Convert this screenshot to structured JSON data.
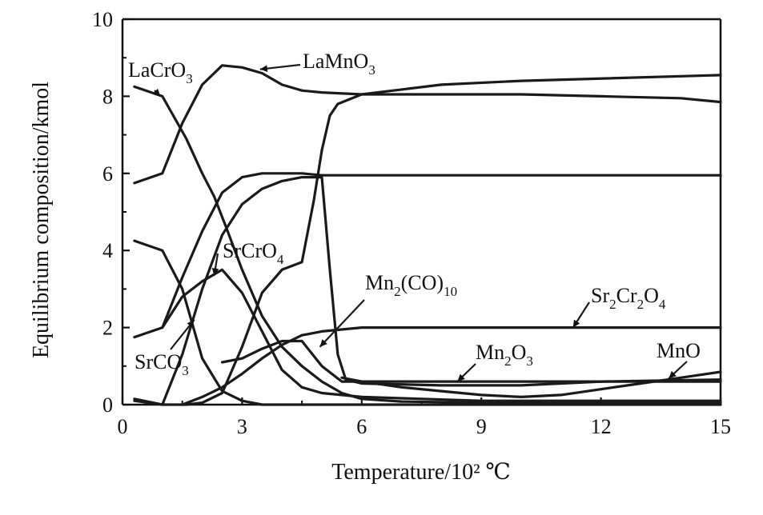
{
  "chart_data": {
    "type": "line",
    "title": "",
    "xlabel": "Temperature/10² ℃",
    "ylabel": "Equilibrium composition/kmol",
    "xlim": [
      0,
      15
    ],
    "ylim": [
      0,
      10
    ],
    "xticks": [
      "0",
      "3",
      "6",
      "9",
      "12",
      "15"
    ],
    "yticks": [
      "0",
      "2",
      "4",
      "6",
      "8",
      "10"
    ],
    "grid": false,
    "legend": "inline labels",
    "series": [
      {
        "id": "lacro3",
        "label": "LaCrO₃",
        "x": [
          0.3,
          1.0,
          1.6,
          2.0,
          2.3,
          2.6,
          3.0,
          3.5,
          4.0,
          4.5,
          5.0,
          5.5,
          6.0,
          7.0,
          9.0,
          12.0,
          15.0
        ],
        "y": [
          8.25,
          8.0,
          6.9,
          6.0,
          5.4,
          4.6,
          3.5,
          2.3,
          1.5,
          1.0,
          0.6,
          0.3,
          0.15,
          0.08,
          0.05,
          0.05,
          0.05
        ]
      },
      {
        "id": "lamno3",
        "label": "LaMnO₃",
        "x": [
          0.3,
          1.0,
          1.5,
          2.0,
          2.5,
          3.0,
          3.5,
          4.0,
          4.5,
          5.0,
          6.0,
          8.0,
          10.0,
          12.0,
          14.0,
          15.0
        ],
        "y": [
          5.75,
          6.0,
          7.3,
          8.3,
          8.8,
          8.75,
          8.6,
          8.3,
          8.15,
          8.1,
          8.05,
          8.05,
          8.05,
          8.0,
          7.95,
          7.85
        ]
      },
      {
        "id": "srcro4",
        "label": "SrCrO₄",
        "x": [
          0.3,
          1.0,
          1.5,
          2.0,
          2.5,
          3.0,
          3.5,
          4.0,
          4.5,
          5.0,
          5.5,
          6.0,
          9.0,
          12.0,
          15.0
        ],
        "y": [
          1.75,
          2.0,
          2.8,
          3.2,
          3.5,
          2.9,
          1.9,
          0.9,
          0.45,
          0.3,
          0.25,
          0.2,
          0.1,
          0.1,
          0.1
        ]
      },
      {
        "id": "srco3",
        "label": "SrCO₃",
        "x": [
          0.3,
          1.0,
          1.5,
          2.0,
          2.5,
          3.0,
          3.5,
          6.0,
          10.0,
          15.0
        ],
        "y": [
          4.25,
          4.0,
          3.0,
          1.2,
          0.35,
          0.1,
          0.0,
          0.0,
          0.0,
          0.0
        ]
      },
      {
        "id": "upper-strand",
        "label": "",
        "x": [
          1.0,
          1.5,
          2.0,
          2.5,
          3.0,
          3.5,
          4.0,
          4.5,
          5.0,
          5.5,
          6.0,
          9.0,
          12.0,
          15.0
        ],
        "y": [
          2.0,
          3.3,
          4.5,
          5.5,
          5.9,
          6.0,
          6.0,
          6.0,
          5.95,
          5.95,
          5.95,
          5.95,
          5.95,
          5.95
        ]
      },
      {
        "id": "mid-strand",
        "label": "",
        "x": [
          0.3,
          1.0,
          1.5,
          2.0,
          2.5,
          3.0,
          3.5,
          4.0,
          4.5,
          5.0,
          5.2,
          5.4,
          5.6,
          6.0,
          8.0,
          10.0,
          12.0,
          15.0
        ],
        "y": [
          0.15,
          0.0,
          1.3,
          3.0,
          4.4,
          5.2,
          5.6,
          5.8,
          5.9,
          5.9,
          3.5,
          1.3,
          0.65,
          0.55,
          0.5,
          0.5,
          0.6,
          0.65
        ]
      },
      {
        "id": "mn2co10",
        "label": "Mn₂(CO)₁₀",
        "x": [
          0.3,
          1.0,
          1.6,
          2.0,
          2.5,
          3.0,
          3.5,
          4.0,
          4.5,
          4.8,
          5.0,
          5.2,
          5.4,
          6.0,
          8.0,
          10.0,
          15.0
        ],
        "y": [
          0.1,
          0.0,
          0.0,
          0.05,
          0.3,
          1.5,
          2.9,
          3.5,
          3.7,
          5.3,
          6.6,
          7.5,
          7.8,
          8.05,
          8.3,
          8.4,
          8.55
        ]
      },
      {
        "id": "sr2cr2o4",
        "label": "Sr₂Cr₂O₄",
        "x": [
          1.5,
          2.0,
          2.5,
          3.0,
          3.5,
          4.0,
          4.5,
          5.0,
          5.5,
          6.0,
          9.0,
          12.0,
          15.0
        ],
        "y": [
          0.0,
          0.2,
          0.45,
          0.8,
          1.2,
          1.55,
          1.8,
          1.9,
          1.95,
          2.0,
          2.0,
          2.0,
          2.0
        ]
      },
      {
        "id": "mn2o3",
        "label": "Mn₂O₃",
        "x": [
          2.5,
          3.0,
          3.5,
          4.0,
          4.5,
          5.0,
          5.5,
          6.0,
          9.0,
          12.0,
          15.0
        ],
        "y": [
          1.1,
          1.2,
          1.45,
          1.65,
          1.65,
          1.0,
          0.6,
          0.6,
          0.6,
          0.6,
          0.6
        ]
      },
      {
        "id": "mno",
        "label": "MnO",
        "x": [
          5.5,
          6.0,
          7.0,
          8.0,
          9.0,
          10.0,
          11.0,
          12.0,
          13.0,
          14.0,
          15.0
        ],
        "y": [
          0.7,
          0.6,
          0.45,
          0.35,
          0.25,
          0.2,
          0.25,
          0.4,
          0.55,
          0.7,
          0.85
        ]
      }
    ],
    "annotations": [
      {
        "series": "lacro3",
        "text": "LaCrO₃",
        "sub": "3",
        "main": "LaCrO"
      },
      {
        "series": "lamno3",
        "text": "LaMnO₃",
        "sub": "3",
        "main": "LaMnO"
      },
      {
        "series": "srcro4",
        "text": "SrCrO₄",
        "sub": "4",
        "main": "SrCrO"
      },
      {
        "series": "srco3",
        "text": "SrCO₃",
        "sub": "3",
        "main": "SrCO"
      },
      {
        "series": "mn2co10",
        "text": "Mn₂(CO)₁₀",
        "main": "Mn",
        "sub1": "2",
        "mid": "(CO)",
        "sub2": "10"
      },
      {
        "series": "sr2cr2o4",
        "text": "Sr₂Cr₂O₄",
        "p1": "Sr",
        "s1": "2",
        "p2": "Cr",
        "s2": "2",
        "p3": "O",
        "s3": "4"
      },
      {
        "series": "mn2o3",
        "text": "Mn₂O₃",
        "p1": "Mn",
        "s1": "2",
        "p2": "O",
        "s2": "3"
      },
      {
        "series": "mno",
        "text": "MnO"
      }
    ]
  }
}
